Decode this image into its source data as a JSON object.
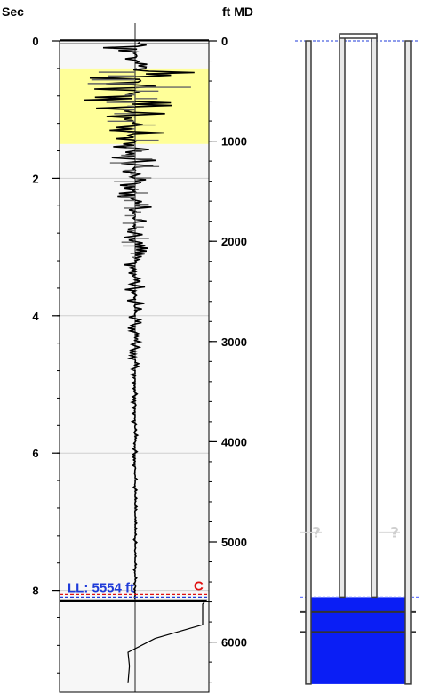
{
  "colors": {
    "panel_bg": "#f7f7f7",
    "highlight": "#ffff99",
    "trace": "#000000",
    "trace_grey": "#666666",
    "level_line_blue": "#1f3bd9",
    "level_line_red": "#e01010",
    "fluid": "#0a1ef5",
    "tube_outline": "#3a3a3a"
  },
  "chart_data": {
    "type": "line",
    "title": "",
    "left_axis": {
      "label": "Sec",
      "ticks": [
        "0",
        "2",
        "4",
        "6",
        "8"
      ],
      "range": [
        0,
        9.35
      ],
      "minor_step": 0.4
    },
    "right_axis": {
      "label": "ft MD",
      "ticks": [
        "0",
        "1000",
        "2000",
        "3000",
        "4000",
        "5000",
        "6000"
      ],
      "range": [
        0,
        6875
      ],
      "minor_step": 200
    },
    "highlight_band_sec": [
      0.4,
      1.5
    ],
    "liquid_level": {
      "label": "LL: 5554 ft",
      "depth_ft": 5554,
      "time_sec": 8.14,
      "marker": "C"
    },
    "echo_trace": {
      "sample_step_sec": 0.04,
      "envelope_sec": [
        0,
        0.3,
        0.4,
        0.55,
        0.8,
        1.1,
        1.5,
        2.0,
        3.0,
        4.0,
        5.0,
        6.0,
        7.0,
        8.1
      ],
      "envelope_amp": [
        0.95,
        0.06,
        0.98,
        0.9,
        0.75,
        0.52,
        0.42,
        0.3,
        0.19,
        0.12,
        0.05,
        0.035,
        0.025,
        0.02
      ],
      "lateral_bias": [
        0.15,
        0.1,
        0.75,
        0.2,
        -0.2,
        -0.25,
        -0.1,
        -0.02,
        0.03,
        0,
        0,
        0,
        0,
        0
      ],
      "after_level": {
        "time_sec": [
          8.14,
          8.2,
          8.5,
          8.7,
          8.9,
          9.1,
          9.35
        ],
        "offset": [
          1.0,
          0.95,
          0.95,
          0.28,
          -0.1,
          -0.08,
          -0.1
        ]
      }
    },
    "wellbore": {
      "fluid_top_ft": 5554,
      "fluid_bottom_ft": 6420,
      "tubing_bottom_ft": 5554,
      "casing_collar_ft": [
        5700,
        5900
      ],
      "question_marker_ft": 4950,
      "question_label": "?",
      "surface_ft": 0
    }
  }
}
